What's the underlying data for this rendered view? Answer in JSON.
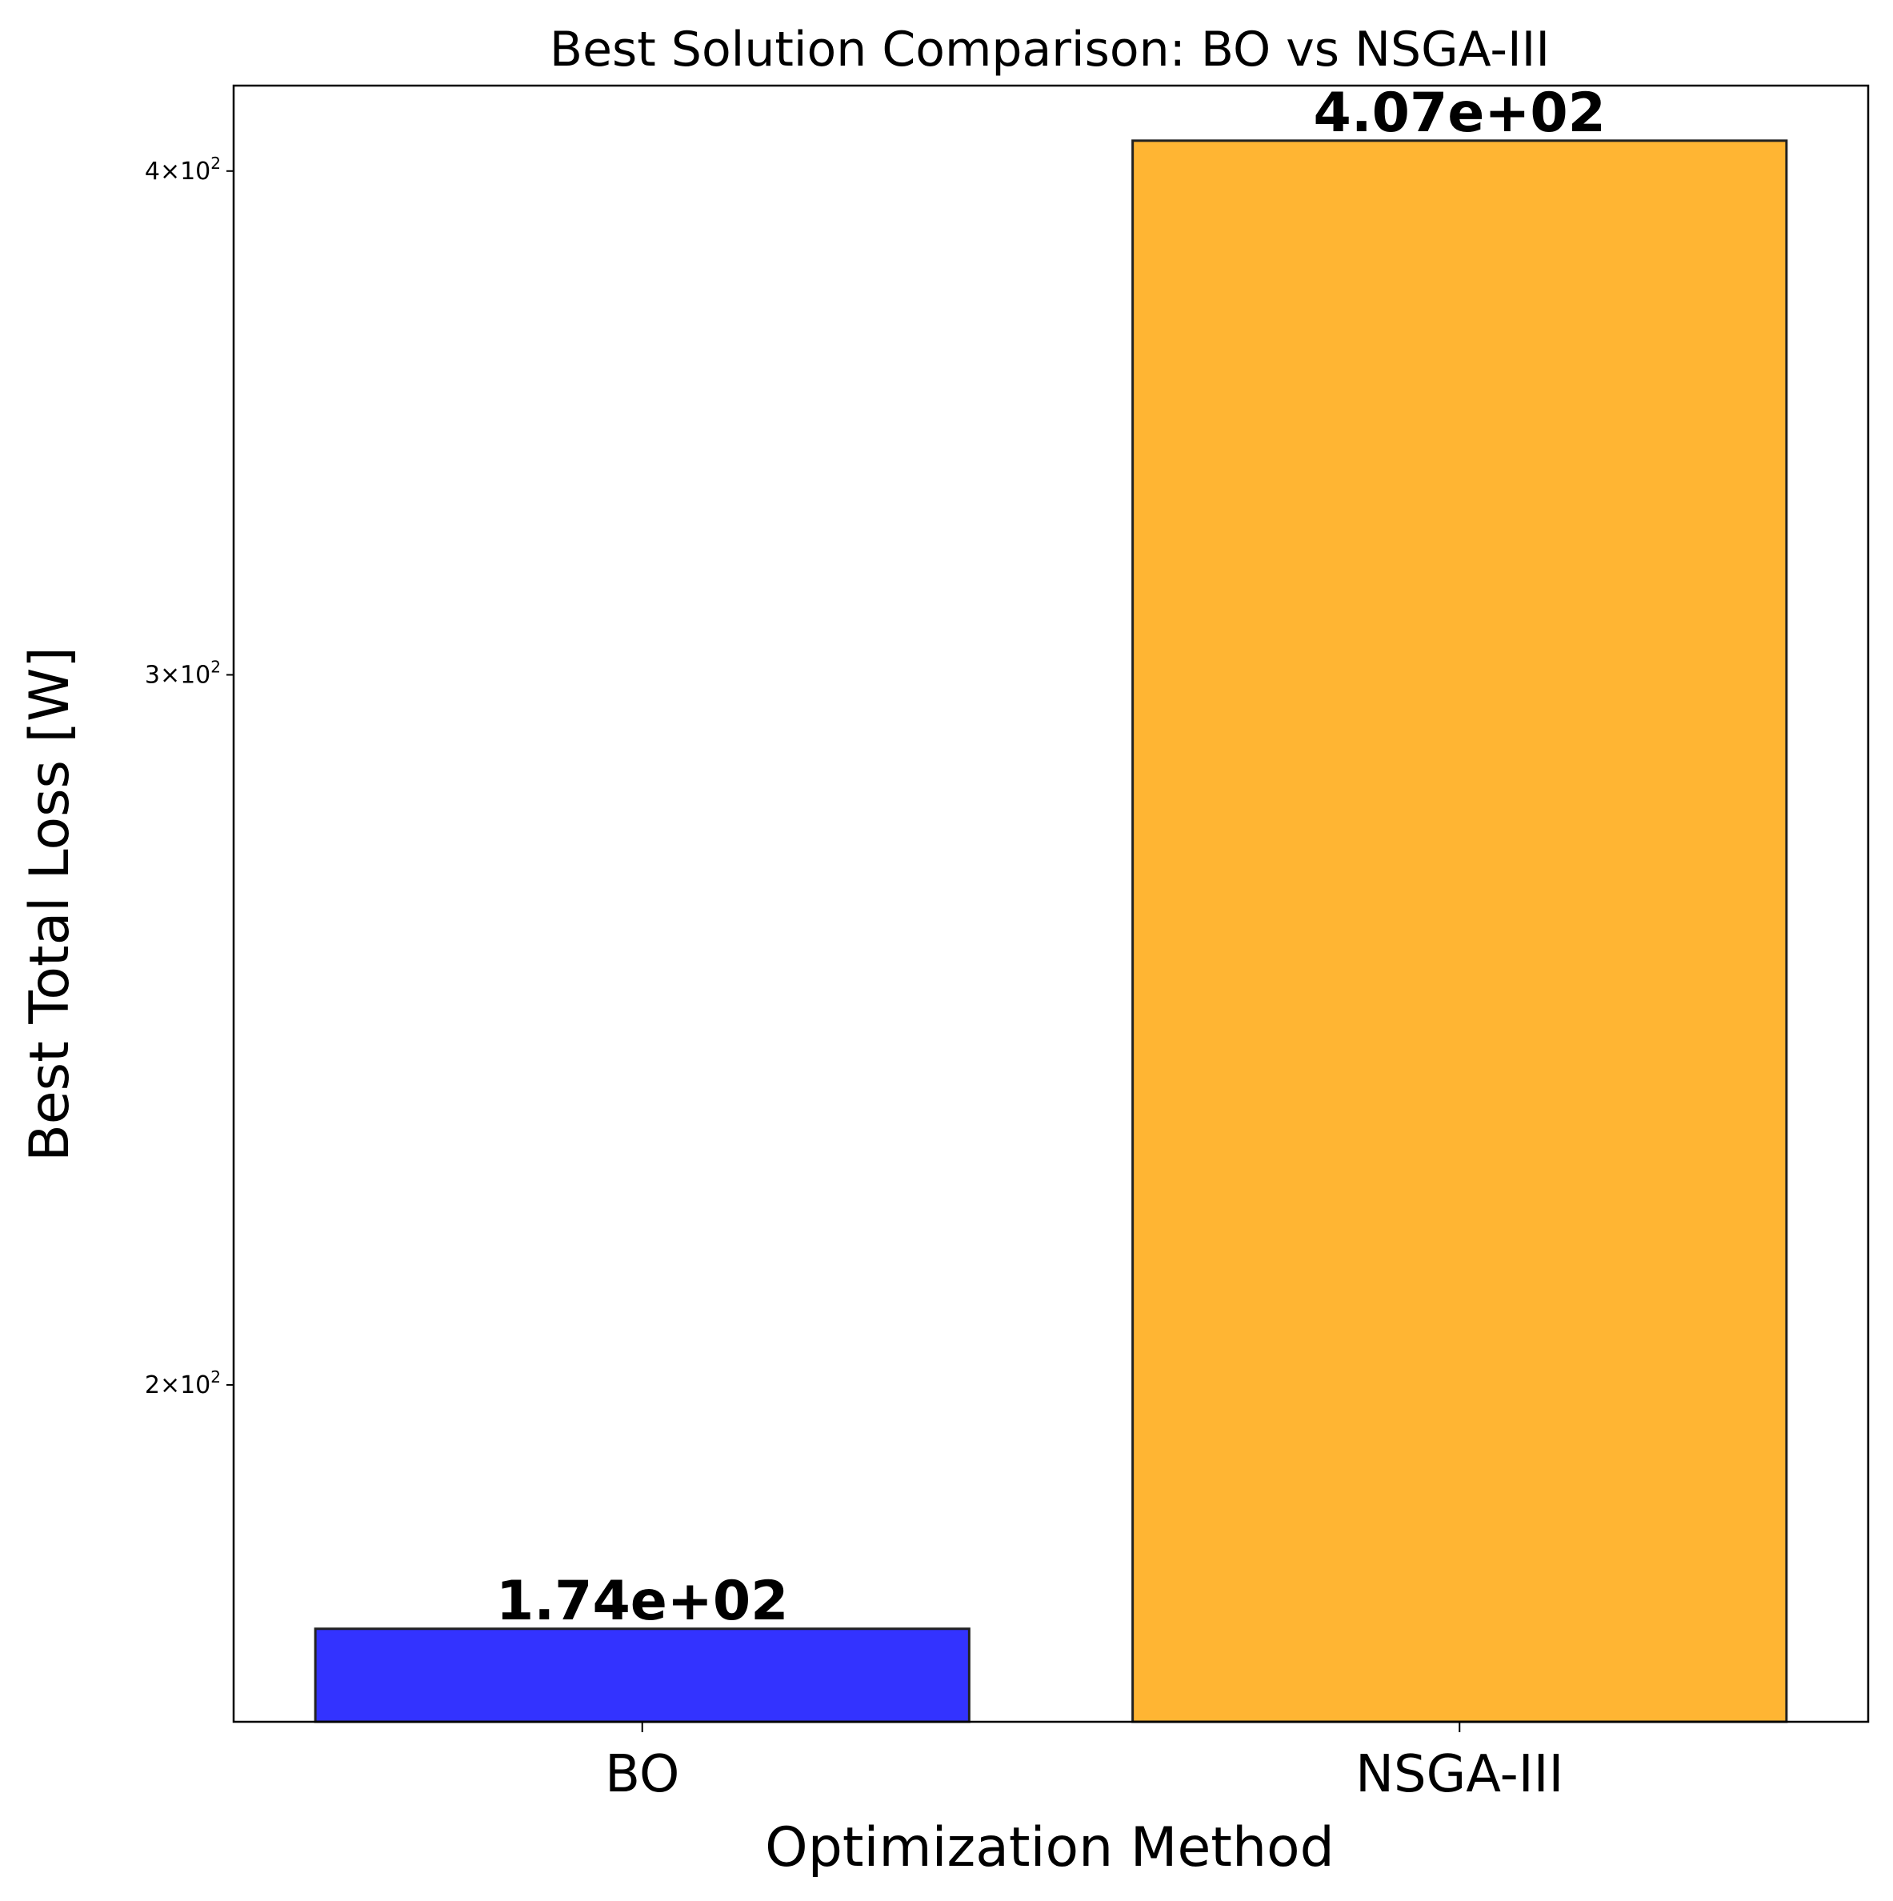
{
  "chart_data": {
    "type": "bar",
    "title": "Best Solution Comparison: BO vs NSGA-III",
    "xlabel": "Optimization Method",
    "ylabel": "Best Total Loss [W]",
    "categories": [
      "BO",
      "NSGA-III"
    ],
    "values": [
      174,
      407
    ],
    "value_labels": [
      "1.74e+02",
      "4.07e+02"
    ],
    "colors": [
      "#3333ff",
      "#ffb533"
    ],
    "yscale": "log",
    "ylim": [
      165,
      420
    ],
    "yticks": [
      {
        "value": 200,
        "mantissa": "2",
        "base": "10",
        "exp": "2"
      },
      {
        "value": 300,
        "mantissa": "3",
        "base": "10",
        "exp": "2"
      },
      {
        "value": 400,
        "mantissa": "4",
        "base": "10",
        "exp": "2"
      }
    ],
    "grid": false,
    "legend": "none"
  }
}
